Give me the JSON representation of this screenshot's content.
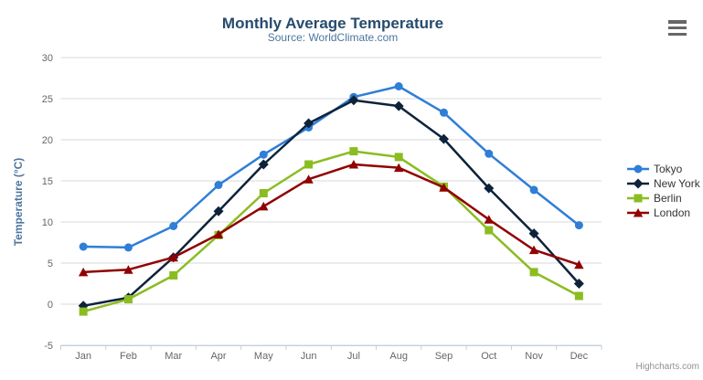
{
  "chart": {
    "credit": "Highcharts.com",
    "export_menu_icon": "hamburger-menu-icon"
  },
  "chart_data": {
    "type": "line",
    "title": "Monthly Average Temperature",
    "subtitle": "Source: WorldClimate.com",
    "xlabel": "",
    "ylabel": "Temperature (°C)",
    "categories": [
      "Jan",
      "Feb",
      "Mar",
      "Apr",
      "May",
      "Jun",
      "Jul",
      "Aug",
      "Sep",
      "Oct",
      "Nov",
      "Dec"
    ],
    "series": [
      {
        "name": "Tokyo",
        "color": "#2f7ed8",
        "marker": "circle",
        "values": [
          7.0,
          6.9,
          9.5,
          14.5,
          18.2,
          21.5,
          25.2,
          26.5,
          23.3,
          18.3,
          13.9,
          9.6
        ]
      },
      {
        "name": "New York",
        "color": "#0d233a",
        "marker": "diamond",
        "values": [
          -0.2,
          0.8,
          5.7,
          11.3,
          17.0,
          22.0,
          24.8,
          24.1,
          20.1,
          14.1,
          8.6,
          2.5
        ]
      },
      {
        "name": "Berlin",
        "color": "#8bbc21",
        "marker": "square",
        "values": [
          -0.9,
          0.6,
          3.5,
          8.4,
          13.5,
          17.0,
          18.6,
          17.9,
          14.3,
          9.0,
          3.9,
          1.0
        ]
      },
      {
        "name": "London",
        "color": "#910000",
        "marker": "triangle",
        "values": [
          3.9,
          4.2,
          5.7,
          8.5,
          11.9,
          15.2,
          17.0,
          16.6,
          14.2,
          10.3,
          6.6,
          4.8
        ]
      }
    ],
    "ylim": [
      -5,
      30
    ],
    "yticks": [
      -5,
      0,
      5,
      10,
      15,
      20,
      25,
      30
    ],
    "grid": true,
    "legend_position": "right",
    "colors": {
      "title": "#274b6d",
      "subtitle": "#4d759e",
      "axis_labels": "#666666",
      "gridline": "#d8d8d8",
      "axis_line": "#c0d0e0",
      "legend_text": "#333333",
      "credit": "#909090"
    }
  }
}
